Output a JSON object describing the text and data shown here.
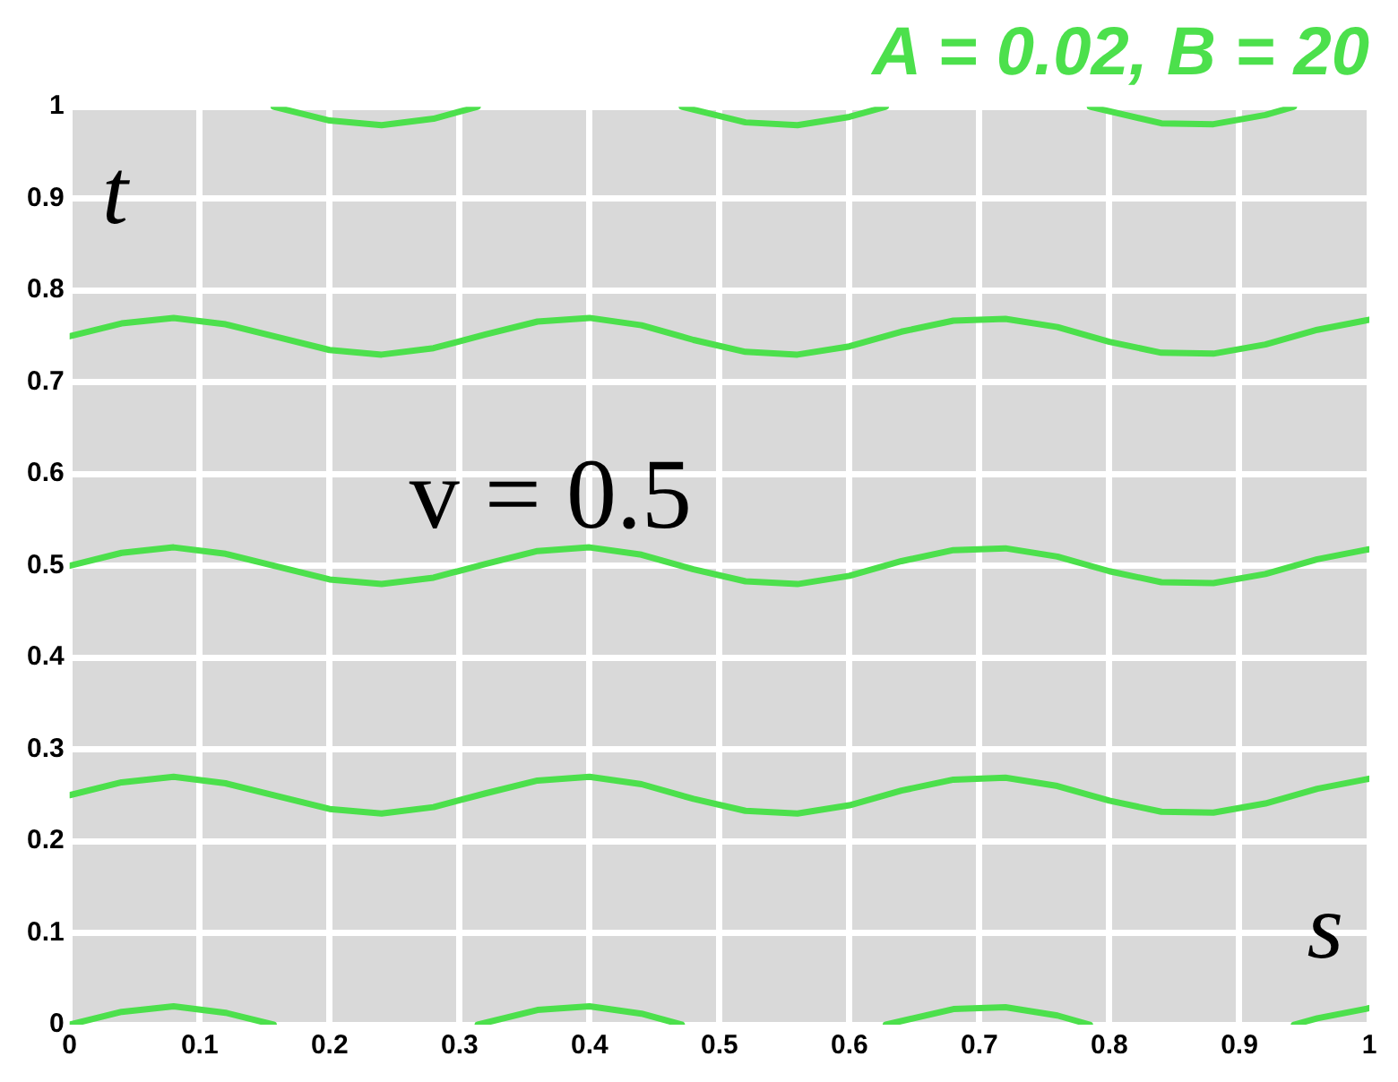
{
  "chart_data": {
    "type": "line",
    "title": "A = 0.02, B = 20",
    "xlabel": "s",
    "ylabel": "t",
    "annotations": [
      "v = 0.5"
    ],
    "xlim": [
      0,
      1
    ],
    "ylim": [
      0,
      1
    ],
    "xticks": [
      0,
      0.1,
      0.2,
      0.3,
      0.4,
      0.5,
      0.6,
      0.7,
      0.8,
      0.9,
      1
    ],
    "yticks": [
      0,
      0.1,
      0.2,
      0.3,
      0.4,
      0.5,
      0.6,
      0.7,
      0.8,
      0.9,
      1
    ],
    "grid": true,
    "legend": false,
    "marker": "none",
    "line_style": "solid",
    "series": [
      {
        "color": "#4ce04c",
        "x": [
          0,
          0.04,
          0.08,
          0.12,
          0.157,
          0.2,
          0.314,
          0.36,
          0.4,
          0.44,
          0.471,
          0.52,
          0.628,
          0.68,
          0.72,
          0.76,
          0.785,
          0.84,
          0.942,
          0.96,
          1
        ],
        "values": [
          0,
          0.014,
          0.02,
          0.013,
          0,
          null,
          0,
          0.016,
          0.02,
          0.012,
          0,
          null,
          0,
          0.017,
          0.019,
          0.01,
          0,
          null,
          0,
          0.007,
          0.018
        ]
      },
      {
        "color": "#4ce04c",
        "x": [
          0,
          0.04,
          0.08,
          0.12,
          0.16,
          0.2,
          0.24,
          0.28,
          0.32,
          0.36,
          0.4,
          0.44,
          0.48,
          0.52,
          0.56,
          0.6,
          0.64,
          0.68,
          0.72,
          0.76,
          0.8,
          0.84,
          0.88,
          0.92,
          0.96,
          1
        ],
        "values": [
          0.25,
          0.264,
          0.27,
          0.263,
          0.249,
          0.235,
          0.23,
          0.237,
          0.252,
          0.266,
          0.27,
          0.262,
          0.246,
          0.233,
          0.23,
          0.239,
          0.255,
          0.267,
          0.269,
          0.26,
          0.244,
          0.232,
          0.231,
          0.241,
          0.257,
          0.268
        ]
      },
      {
        "color": "#4ce04c",
        "x": [
          0,
          0.04,
          0.08,
          0.12,
          0.16,
          0.2,
          0.24,
          0.28,
          0.32,
          0.36,
          0.4,
          0.44,
          0.48,
          0.52,
          0.56,
          0.6,
          0.64,
          0.68,
          0.72,
          0.76,
          0.8,
          0.84,
          0.88,
          0.92,
          0.96,
          1
        ],
        "values": [
          0.5,
          0.514,
          0.52,
          0.513,
          0.499,
          0.485,
          0.48,
          0.487,
          0.502,
          0.516,
          0.52,
          0.512,
          0.496,
          0.483,
          0.48,
          0.489,
          0.505,
          0.517,
          0.519,
          0.51,
          0.494,
          0.482,
          0.481,
          0.491,
          0.507,
          0.518
        ]
      },
      {
        "color": "#4ce04c",
        "x": [
          0,
          0.04,
          0.08,
          0.12,
          0.16,
          0.2,
          0.24,
          0.28,
          0.32,
          0.36,
          0.4,
          0.44,
          0.48,
          0.52,
          0.56,
          0.6,
          0.64,
          0.68,
          0.72,
          0.76,
          0.8,
          0.84,
          0.88,
          0.92,
          0.96,
          1
        ],
        "values": [
          0.75,
          0.764,
          0.77,
          0.763,
          0.749,
          0.735,
          0.73,
          0.737,
          0.752,
          0.766,
          0.77,
          0.762,
          0.746,
          0.733,
          0.73,
          0.739,
          0.755,
          0.767,
          0.769,
          0.76,
          0.744,
          0.732,
          0.731,
          0.741,
          0.757,
          0.768
        ]
      },
      {
        "color": "#4ce04c",
        "x": [
          0.157,
          0.2,
          0.24,
          0.28,
          0.314,
          0.36,
          0.471,
          0.52,
          0.56,
          0.6,
          0.628,
          0.7,
          0.785,
          0.84,
          0.88,
          0.92,
          0.942
        ],
        "values": [
          1,
          0.985,
          0.98,
          0.987,
          1,
          null,
          1,
          0.983,
          0.98,
          0.989,
          1,
          null,
          1,
          0.982,
          0.981,
          0.991,
          1
        ]
      }
    ]
  }
}
